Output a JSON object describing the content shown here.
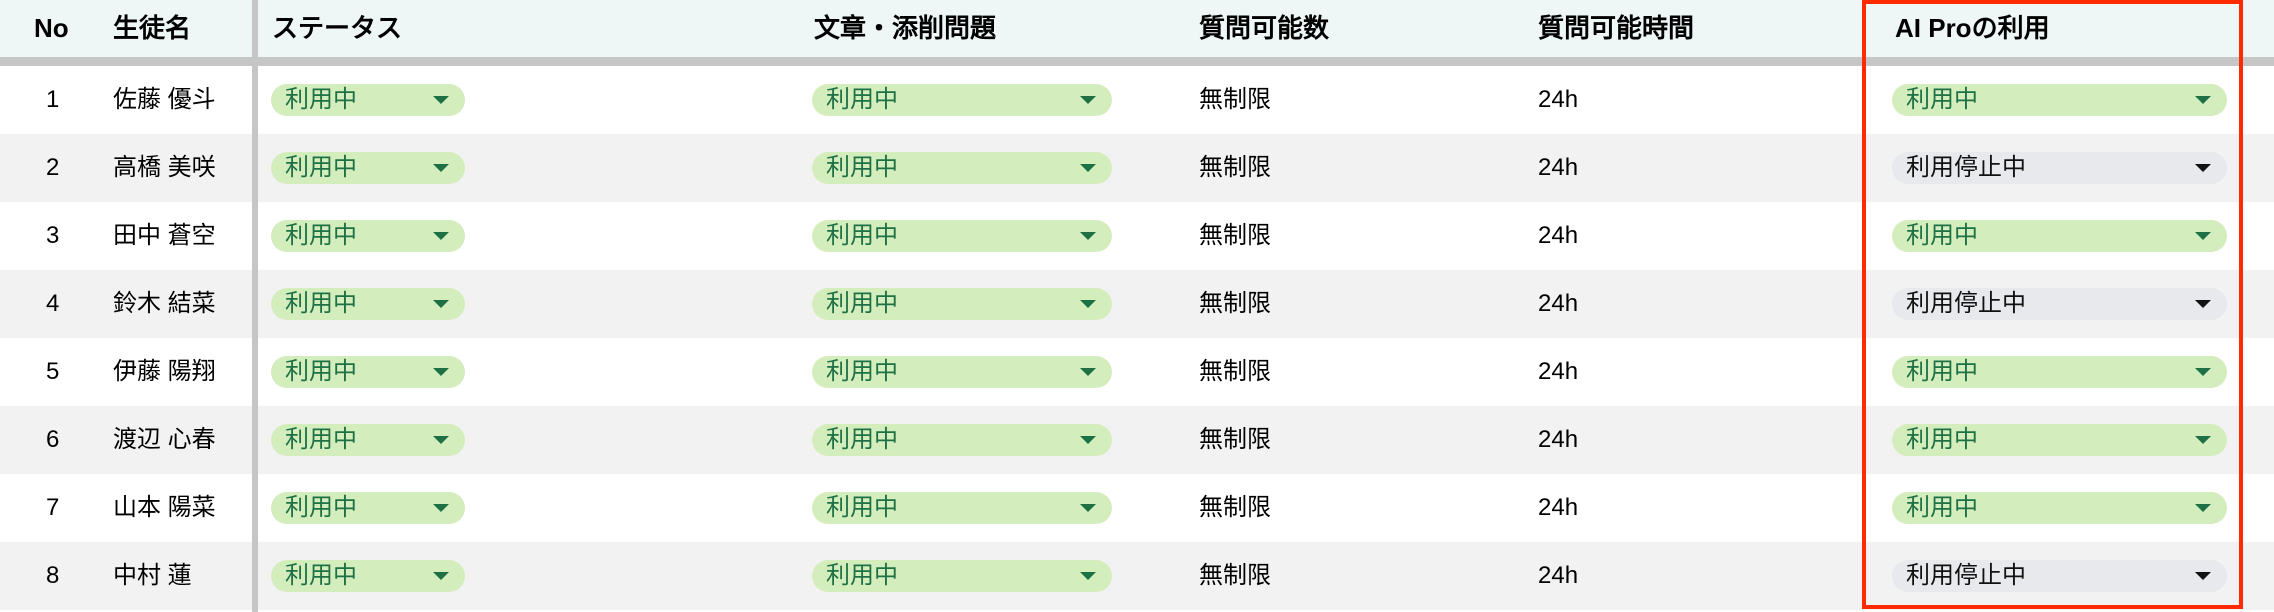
{
  "header": {
    "no": "No",
    "name": "生徒名",
    "status": "ステータス",
    "writing": "文章・添削問題",
    "questions": "質問可能数",
    "hours": "質問可能時間",
    "aipro": "AI Proの利用"
  },
  "colors": {
    "active_bg": "#d4edbc",
    "active_text": "#1e7145",
    "inactive_bg": "#e8e9ec",
    "highlight": "#ff2a00",
    "header_bg": "#eef7f6"
  },
  "rows": [
    {
      "no": "1",
      "name": "佐藤 優斗",
      "status": "利用中",
      "writing": "利用中",
      "questions": "無制限",
      "hours": "24h",
      "aipro": "利用中",
      "aipro_active": true
    },
    {
      "no": "2",
      "name": "高橋 美咲",
      "status": "利用中",
      "writing": "利用中",
      "questions": "無制限",
      "hours": "24h",
      "aipro": "利用停止中",
      "aipro_active": false
    },
    {
      "no": "3",
      "name": "田中 蒼空",
      "status": "利用中",
      "writing": "利用中",
      "questions": "無制限",
      "hours": "24h",
      "aipro": "利用中",
      "aipro_active": true
    },
    {
      "no": "4",
      "name": "鈴木 結菜",
      "status": "利用中",
      "writing": "利用中",
      "questions": "無制限",
      "hours": "24h",
      "aipro": "利用停止中",
      "aipro_active": false
    },
    {
      "no": "5",
      "name": "伊藤 陽翔",
      "status": "利用中",
      "writing": "利用中",
      "questions": "無制限",
      "hours": "24h",
      "aipro": "利用中",
      "aipro_active": true
    },
    {
      "no": "6",
      "name": "渡辺 心春",
      "status": "利用中",
      "writing": "利用中",
      "questions": "無制限",
      "hours": "24h",
      "aipro": "利用中",
      "aipro_active": true
    },
    {
      "no": "7",
      "name": "山本 陽菜",
      "status": "利用中",
      "writing": "利用中",
      "questions": "無制限",
      "hours": "24h",
      "aipro": "利用中",
      "aipro_active": true
    },
    {
      "no": "8",
      "name": "中村 蓮",
      "status": "利用中",
      "writing": "利用中",
      "questions": "無制限",
      "hours": "24h",
      "aipro": "利用停止中",
      "aipro_active": false
    }
  ]
}
